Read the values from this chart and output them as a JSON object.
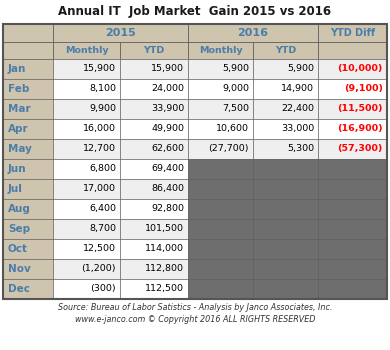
{
  "title": "Annual IT  Job Market  Gain 2015 vs 2016",
  "months": [
    "Jan",
    "Feb",
    "Mar",
    "Apr",
    "May",
    "Jun",
    "Jul",
    "Aug",
    "Sep",
    "Oct",
    "Nov",
    "Dec"
  ],
  "data_2015_monthly": [
    "15,900",
    "8,100",
    "9,900",
    "16,000",
    "12,700",
    "6,800",
    "17,000",
    "6,400",
    "8,700",
    "12,500",
    "(1,200)",
    "(300)"
  ],
  "data_2015_ytd": [
    "15,900",
    "24,000",
    "33,900",
    "49,900",
    "62,600",
    "69,400",
    "86,400",
    "92,800",
    "101,500",
    "114,000",
    "112,800",
    "112,500"
  ],
  "data_2016_monthly": [
    "5,900",
    "9,000",
    "7,500",
    "10,600",
    "(27,700)",
    "",
    "",
    "",
    "",
    "",
    "",
    ""
  ],
  "data_2016_ytd": [
    "5,900",
    "14,900",
    "22,400",
    "33,000",
    "5,300",
    "",
    "",
    "",
    "",
    "",
    "",
    ""
  ],
  "data_ytd_diff": [
    "(10,000)",
    "(9,100)",
    "(11,500)",
    "(16,900)",
    "(57,300)",
    "",
    "",
    "",
    "",
    "",
    "",
    ""
  ],
  "source_line1": "Source: Bureau of Labor Satistics - Analysis by Janco Associates, Inc.",
  "source_line2": "www.e-janco.com © Copyright 2016 ALL RIGHTS RESERVED",
  "color_header_bg": "#CFC4AD",
  "color_row_odd": "#EFEFEF",
  "color_row_even": "#FFFFFF",
  "color_gray": "#6E6E6E",
  "color_red": "#FF0000",
  "color_blue_header": "#4A7DAA",
  "color_title": "#1A1A1A",
  "color_border": "#555555"
}
